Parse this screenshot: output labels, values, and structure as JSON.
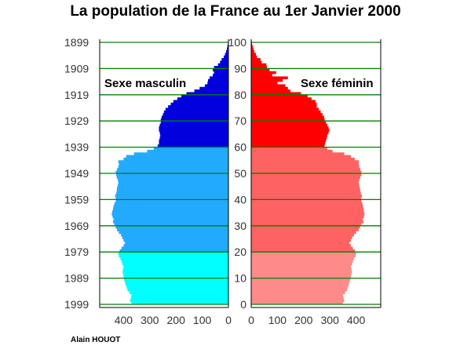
{
  "title": "La population de la France au 1er Janvier 2000",
  "credit": "Alain HOUOT",
  "colors": {
    "male_old": "#0000dd",
    "male_mid": "#22aaff",
    "male_young": "#00ffff",
    "female_old": "#ff0000",
    "female_mid": "#ff6262",
    "female_young": "#ff8a8a",
    "gridline": "#008000",
    "axis": "#000000"
  },
  "chart_data": {
    "type": "bar",
    "orientation": "horizontal-population-pyramid",
    "reference_date": "1er Janvier 2000",
    "left_label": "Sexe masculin",
    "right_label": "Sexe féminin",
    "year_ticks": [
      "1899",
      "1909",
      "1919",
      "1929",
      "1939",
      "1949",
      "1959",
      "1969",
      "1979",
      "1989",
      "1999"
    ],
    "age_ticks": [
      "100",
      "90",
      "80",
      "70",
      "60",
      "50",
      "40",
      "30",
      "20",
      "10",
      "0"
    ],
    "x_ticks_male": [
      "400",
      "300",
      "200",
      "100",
      "0"
    ],
    "x_ticks_female": [
      "0",
      "100",
      "200",
      "300",
      "400"
    ],
    "xlim": [
      0,
      500
    ],
    "age_range": [
      0,
      100
    ],
    "age_band_breaks": [
      20,
      60
    ],
    "ages": [
      0,
      1,
      2,
      3,
      4,
      5,
      6,
      7,
      8,
      9,
      10,
      11,
      12,
      13,
      14,
      15,
      16,
      17,
      18,
      19,
      20,
      21,
      22,
      23,
      24,
      25,
      26,
      27,
      28,
      29,
      30,
      31,
      32,
      33,
      34,
      35,
      36,
      37,
      38,
      39,
      40,
      41,
      42,
      43,
      44,
      45,
      46,
      47,
      48,
      49,
      50,
      51,
      52,
      53,
      54,
      55,
      56,
      57,
      58,
      59,
      60,
      61,
      62,
      63,
      64,
      65,
      66,
      67,
      68,
      69,
      70,
      71,
      72,
      73,
      74,
      75,
      76,
      77,
      78,
      79,
      80,
      81,
      82,
      83,
      84,
      85,
      86,
      87,
      88,
      89,
      90,
      91,
      92,
      93,
      94,
      95,
      96,
      97,
      98,
      99,
      100
    ],
    "series": [
      {
        "name": "Sexe masculin",
        "values": [
          370,
          375,
          372,
          370,
          378,
          385,
          388,
          392,
          395,
          398,
          400,
          402,
          404,
          402,
          400,
          405,
          408,
          412,
          418,
          420,
          415,
          408,
          400,
          395,
          400,
          405,
          410,
          418,
          425,
          430,
          435,
          440,
          438,
          442,
          445,
          443,
          440,
          438,
          435,
          430,
          430,
          432,
          428,
          426,
          425,
          422,
          420,
          422,
          426,
          428,
          430,
          425,
          420,
          418,
          420,
          400,
          390,
          360,
          310,
          285,
          270,
          265,
          265,
          262,
          260,
          262,
          265,
          265,
          262,
          258,
          258,
          255,
          250,
          246,
          240,
          230,
          220,
          210,
          195,
          180,
          160,
          130,
          110,
          90,
          80,
          78,
          72,
          60,
          55,
          60,
          55,
          40,
          32,
          26,
          18,
          13,
          9,
          6,
          4,
          2,
          1
        ]
      },
      {
        "name": "Sexe féminin",
        "values": [
          350,
          355,
          352,
          350,
          358,
          365,
          368,
          372,
          375,
          378,
          380,
          382,
          384,
          382,
          380,
          385,
          388,
          392,
          398,
          400,
          395,
          388,
          380,
          375,
          380,
          385,
          392,
          400,
          410,
          415,
          420,
          428,
          425,
          430,
          432,
          430,
          428,
          426,
          424,
          420,
          420,
          422,
          418,
          416,
          414,
          412,
          410,
          412,
          416,
          420,
          420,
          416,
          412,
          410,
          410,
          395,
          380,
          355,
          310,
          290,
          280,
          282,
          285,
          288,
          290,
          295,
          298,
          295,
          290,
          285,
          280,
          278,
          272,
          265,
          258,
          250,
          250,
          245,
          230,
          215,
          190,
          150,
          140,
          130,
          100,
          120,
          140,
          80,
          95,
          70,
          60,
          58,
          40,
          35,
          22,
          18,
          12,
          9,
          6,
          3,
          2
        ]
      }
    ]
  }
}
